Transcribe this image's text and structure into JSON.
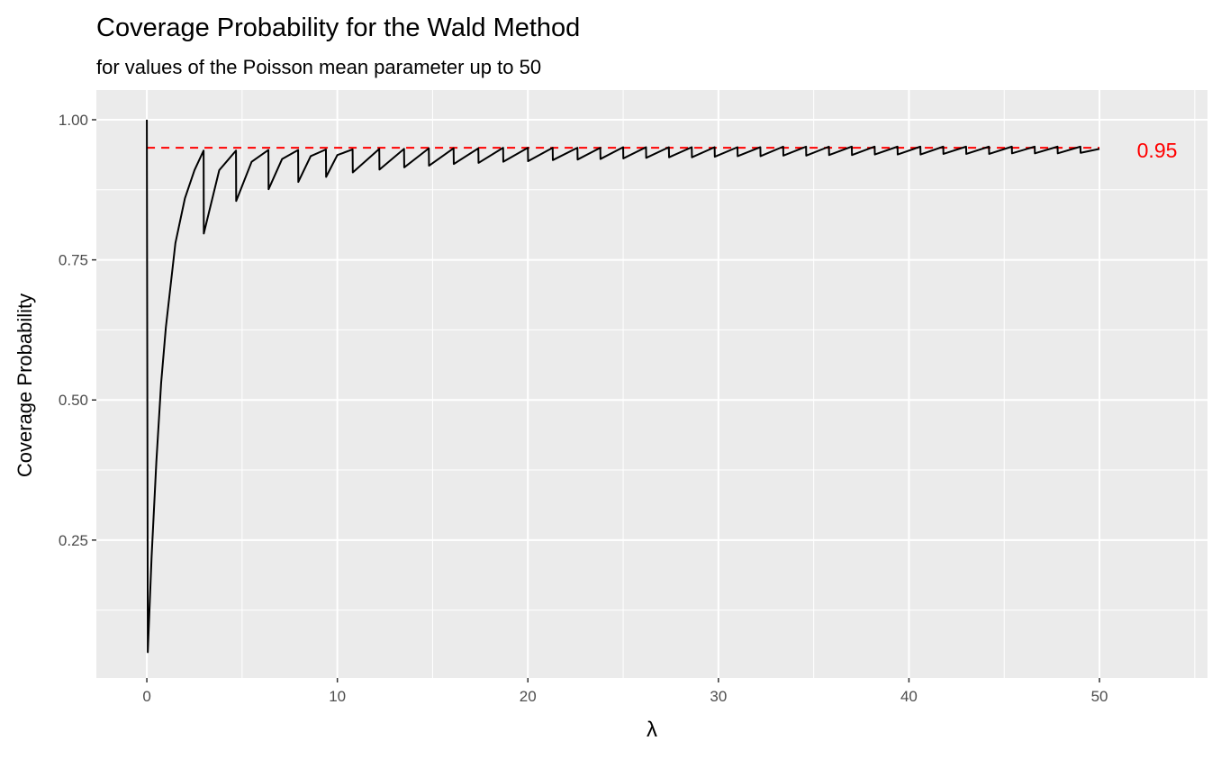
{
  "chart_data": {
    "type": "line",
    "title": "Coverage Probability for the Wald Method",
    "subtitle": "for values of the Poisson mean parameter up to 50",
    "x_label": "λ",
    "y_label": "Coverage Probability",
    "x": [
      0,
      0.05,
      0.25,
      0.5,
      0.75,
      1,
      1.5,
      2,
      2.5,
      2.98,
      2.99,
      3.8,
      4.68,
      4.69,
      5.5,
      6.38,
      6.39,
      7.1,
      7.94,
      7.95,
      8.6,
      9.4,
      9.41,
      10.0,
      10.8,
      10.81,
      12.2,
      12.21,
      13.5,
      13.51,
      14.8,
      14.81,
      16.1,
      16.11,
      17.4,
      17.41,
      18.7,
      18.71,
      20.0,
      20.01,
      21.3,
      21.31,
      22.6,
      22.61,
      23.8,
      23.81,
      25.0,
      25.01,
      26.2,
      26.21,
      27.4,
      27.41,
      28.6,
      28.61,
      29.8,
      29.81,
      31.0,
      31.01,
      32.2,
      32.21,
      33.4,
      33.41,
      34.6,
      34.61,
      35.8,
      35.81,
      37.0,
      37.01,
      38.2,
      38.21,
      39.4,
      39.41,
      40.6,
      40.61,
      41.8,
      41.81,
      43.0,
      43.01,
      44.2,
      44.21,
      45.4,
      45.41,
      46.6,
      46.61,
      47.8,
      47.81,
      49.0,
      49.01,
      50
    ],
    "series": [
      {
        "name": "coverage",
        "color": "#000000",
        "values": [
          1.0,
          0.05,
          0.22,
          0.39,
          0.53,
          0.63,
          0.78,
          0.86,
          0.91,
          0.945,
          0.797,
          0.91,
          0.945,
          0.855,
          0.925,
          0.946,
          0.876,
          0.93,
          0.946,
          0.889,
          0.935,
          0.947,
          0.898,
          0.937,
          0.947,
          0.906,
          0.948,
          0.911,
          0.948,
          0.915,
          0.949,
          0.918,
          0.949,
          0.921,
          0.949,
          0.923,
          0.95,
          0.925,
          0.95,
          0.926,
          0.95,
          0.928,
          0.95,
          0.929,
          0.95,
          0.93,
          0.951,
          0.931,
          0.951,
          0.932,
          0.951,
          0.933,
          0.951,
          0.933,
          0.951,
          0.934,
          0.951,
          0.935,
          0.951,
          0.935,
          0.952,
          0.936,
          0.952,
          0.936,
          0.952,
          0.937,
          0.952,
          0.937,
          0.952,
          0.938,
          0.952,
          0.938,
          0.952,
          0.938,
          0.952,
          0.939,
          0.952,
          0.939,
          0.952,
          0.939,
          0.952,
          0.94,
          0.952,
          0.94,
          0.952,
          0.94,
          0.952,
          0.941,
          0.948
        ]
      }
    ],
    "reference_line": {
      "value": 0.95,
      "label": "0.95",
      "color": "#ff0000",
      "x_from": 0,
      "x_to": 50
    },
    "xlim": [
      -2.65,
      55.67
    ],
    "ylim": [
      0.004,
      1.053
    ],
    "xticks": [
      0,
      10,
      20,
      30,
      40,
      50
    ],
    "yticks": [
      0.25,
      {
        "value": 0.5,
        "label": "0.50"
      },
      0.75,
      {
        "value": 1.0,
        "label": "1.00"
      }
    ],
    "x_minor_grid": [
      5,
      15,
      25,
      35,
      45,
      55
    ],
    "y_minor_grid": [
      0.125,
      0.375,
      0.625,
      0.875
    ],
    "grid": true
  }
}
